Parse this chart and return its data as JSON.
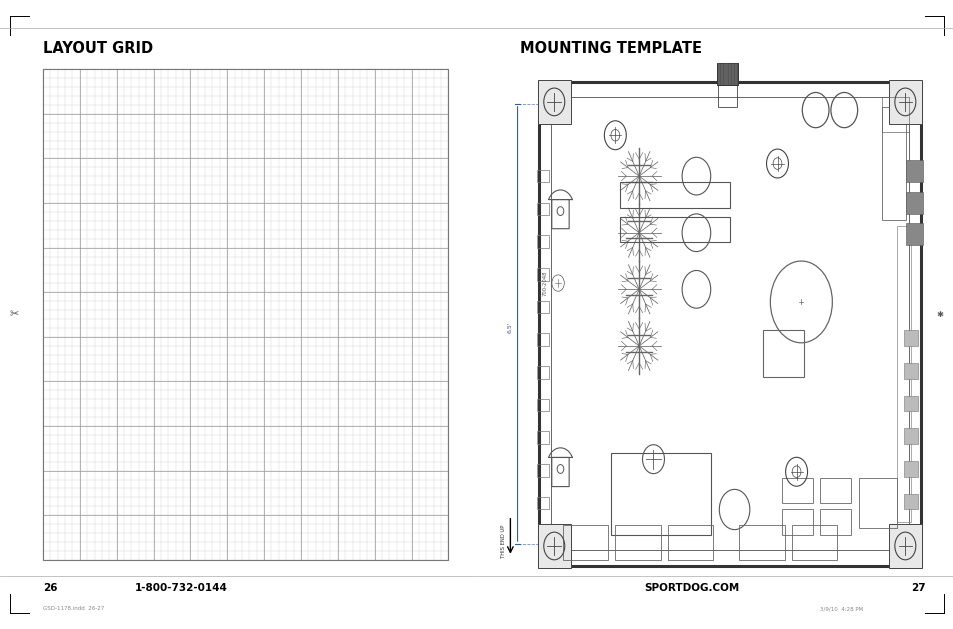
{
  "bg_color": "#ffffff",
  "title_left": "LAYOUT GRID",
  "title_right": "MOUNTING TEMPLATE",
  "footer_left_page": "26",
  "footer_left_phone": "1-800-732-0144",
  "footer_right_web": "SPORTDOG.COM",
  "footer_right_page": "27",
  "footer_small_left": "GSD-1178.indd  26-27",
  "footer_small_right": "3/9/10  4:28 PM",
  "grid_color": "#c8c8c8",
  "grid_major_color": "#999999",
  "text_color": "#000000",
  "dim_color": "#3a5a9a",
  "border_color": "#333333",
  "light_border": "#666666"
}
